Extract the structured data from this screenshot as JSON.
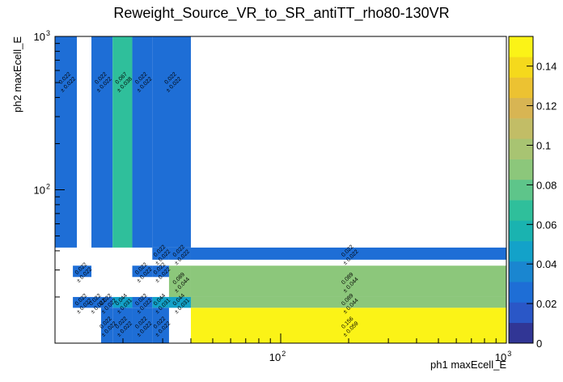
{
  "chart_data": {
    "type": "heatmap",
    "title": "Reweight_Source_VR_to_SR_antiTT_rho80-130VR",
    "xlabel": "ph1 maxEcell_E",
    "ylabel": "ph2 maxEcell_E",
    "xscale": "log",
    "yscale": "log",
    "xlim": [
      10,
      1000
    ],
    "ylim": [
      10,
      1000
    ],
    "x_ticks": [
      {
        "value": 100,
        "base": "10",
        "exp": "2"
      },
      {
        "value": 1000,
        "base": "10",
        "exp": "3"
      }
    ],
    "y_ticks": [
      {
        "value": 100,
        "base": "10",
        "exp": "2"
      },
      {
        "value": 1000,
        "base": "10",
        "exp": "3"
      }
    ],
    "colorbar": {
      "min": 0,
      "max": 0.155,
      "ticks": [
        "0",
        "0.02",
        "0.04",
        "0.06",
        "0.08",
        "0.1",
        "0.12",
        "0.14"
      ],
      "tick_values": [
        0,
        0.02,
        0.04,
        0.06,
        0.08,
        0.1,
        0.12,
        0.14
      ]
    },
    "cells": [
      {
        "x0": 10,
        "x1": 12.5,
        "y0": 42,
        "y1": 1000,
        "value": 0.022,
        "error": 0.022
      },
      {
        "x0": 14.5,
        "x1": 18,
        "y0": 42,
        "y1": 1000,
        "value": 0.022,
        "error": 0.022
      },
      {
        "x0": 18,
        "x1": 22,
        "y0": 42,
        "y1": 1000,
        "value": 0.067,
        "error": 0.038
      },
      {
        "x0": 22,
        "x1": 27,
        "y0": 42,
        "y1": 1000,
        "value": 0.022,
        "error": 0.022
      },
      {
        "x0": 27,
        "x1": 40,
        "y0": 42,
        "y1": 1000,
        "value": 0.022,
        "error": 0.022
      },
      {
        "x0": 27,
        "x1": 32,
        "y0": 35,
        "y1": 42,
        "value": 0.022,
        "error": 0.022
      },
      {
        "x0": 32,
        "x1": 40,
        "y0": 35,
        "y1": 42,
        "value": 0.022,
        "error": 0.022
      },
      {
        "x0": 40,
        "x1": 1000,
        "y0": 35,
        "y1": 42,
        "value": 0.022,
        "error": 0.022
      },
      {
        "x0": 12,
        "x1": 14.5,
        "y0": 27,
        "y1": 32,
        "value": 0.022,
        "error": 0.022
      },
      {
        "x0": 22,
        "x1": 27,
        "y0": 27,
        "y1": 32,
        "value": 0.022,
        "error": 0.022
      },
      {
        "x0": 27,
        "x1": 32,
        "y0": 27,
        "y1": 32,
        "value": 0.022,
        "error": 0.022
      },
      {
        "x0": 32,
        "x1": 40,
        "y0": 20,
        "y1": 32,
        "value": 0.089,
        "error": 0.044
      },
      {
        "x0": 40,
        "x1": 1000,
        "y0": 20,
        "y1": 32,
        "value": 0.089,
        "error": 0.044
      },
      {
        "x0": 12,
        "x1": 14.5,
        "y0": 17,
        "y1": 20,
        "value": 0.022,
        "error": 0.022
      },
      {
        "x0": 14.5,
        "x1": 16,
        "y0": 17,
        "y1": 20,
        "value": 0.022,
        "error": 0.022
      },
      {
        "x0": 16,
        "x1": 18,
        "y0": 17,
        "y1": 20,
        "value": 0.022,
        "error": 0.022
      },
      {
        "x0": 18,
        "x1": 22,
        "y0": 17,
        "y1": 20,
        "value": 0.044,
        "error": 0.031
      },
      {
        "x0": 22,
        "x1": 27,
        "y0": 17,
        "y1": 20,
        "value": 0.022,
        "error": 0.022
      },
      {
        "x0": 27,
        "x1": 32,
        "y0": 17,
        "y1": 20,
        "value": 0.044,
        "error": 0.031
      },
      {
        "x0": 32,
        "x1": 40,
        "y0": 17,
        "y1": 20,
        "value": 0.044,
        "error": 0.031
      },
      {
        "x0": 40,
        "x1": 1000,
        "y0": 17,
        "y1": 20,
        "value": 0.089,
        "error": 0.044
      },
      {
        "x0": 16,
        "x1": 18,
        "y0": 10,
        "y1": 17,
        "value": 0.022,
        "error": 0.022
      },
      {
        "x0": 18,
        "x1": 22,
        "y0": 10,
        "y1": 17,
        "value": 0.022,
        "error": 0.022
      },
      {
        "x0": 22,
        "x1": 27,
        "y0": 10,
        "y1": 17,
        "value": 0.022,
        "error": 0.022
      },
      {
        "x0": 27,
        "x1": 32,
        "y0": 10,
        "y1": 17,
        "value": 0.022,
        "error": 0.022
      },
      {
        "x0": 40,
        "x1": 1000,
        "y0": 10,
        "y1": 17,
        "value": 0.156,
        "error": 0.059
      }
    ],
    "palette": [
      "#313695",
      "#2a57c7",
      "#1e6ed6",
      "#1a86d0",
      "#13a2c9",
      "#1ab3b0",
      "#2fbf9b",
      "#5ec58a",
      "#8cc77b",
      "#a8c472",
      "#c2bd66",
      "#d8b553",
      "#ecc232",
      "#f5d91c",
      "#fbf317"
    ],
    "colors": {
      "text": "#000000",
      "frame": "#000000",
      "background": "#ffffff"
    }
  }
}
